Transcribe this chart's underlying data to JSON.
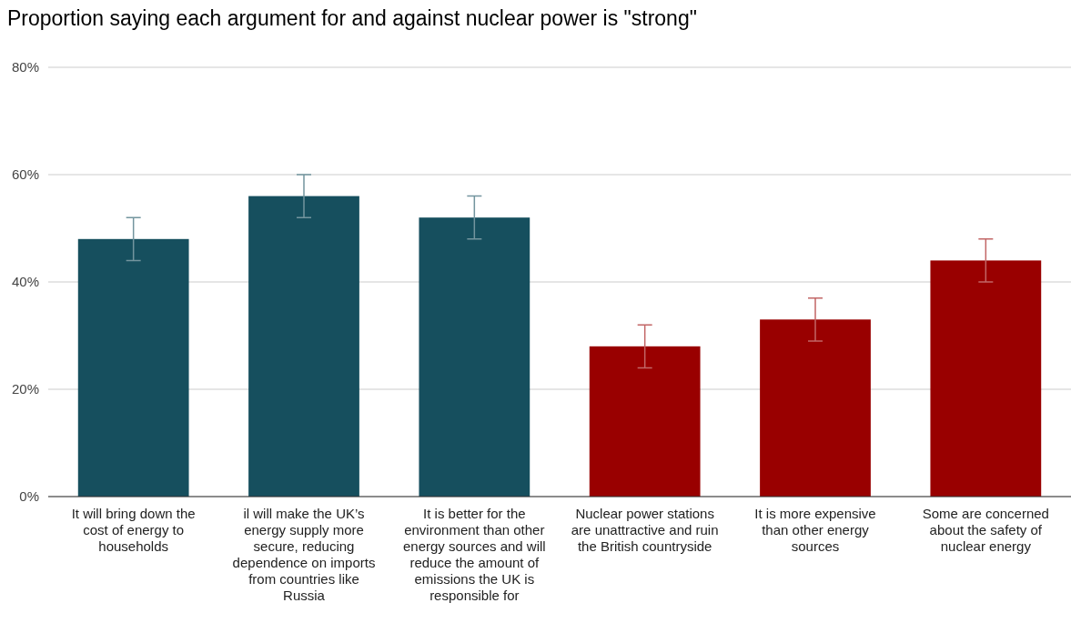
{
  "chart_data": {
    "type": "bar",
    "title": "Proportion saying each argument for and against nuclear power is \"strong\"",
    "categories": [
      "It will bring down the cost of energy to households",
      "il will make the UK’s energy supply more secure, reducing dependence on imports from countries like Russia",
      "It is better for the environment than other energy sources and will reduce the amount of emissions the UK is responsible for",
      "Nuclear power stations are unattractive and ruin the British countryside",
      "It is more expensive than other energy sources",
      "Some are concerned about the safety of nuclear energy"
    ],
    "values": [
      48,
      56,
      52,
      28,
      33,
      44
    ],
    "colors": [
      "#164f5e",
      "#164f5e",
      "#164f5e",
      "#990000",
      "#990000",
      "#990000"
    ],
    "errors": [
      4,
      4,
      4,
      4,
      4,
      4
    ],
    "ylim": [
      0,
      80
    ],
    "yticks": [
      {
        "value": 0,
        "label": "0%"
      },
      {
        "value": 20,
        "label": "20%"
      },
      {
        "value": 40,
        "label": "40%"
      },
      {
        "value": 60,
        "label": "60%"
      },
      {
        "value": 80,
        "label": "80%"
      }
    ],
    "grid": "y"
  }
}
